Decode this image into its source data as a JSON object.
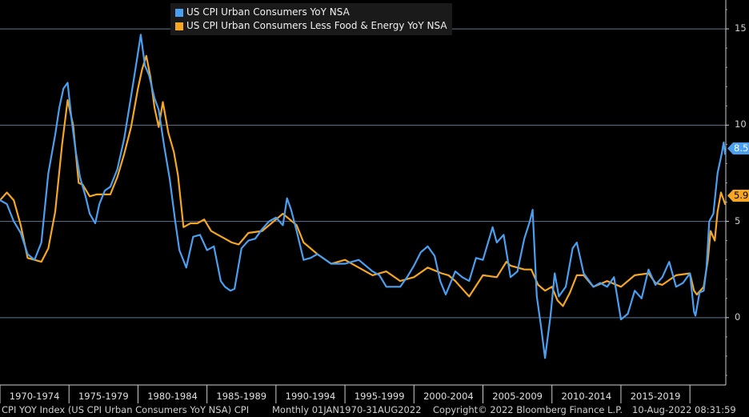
{
  "legend": {
    "series_a": "US CPI Urban Consumers YoY NSA",
    "series_b": "US CPI Urban Consumers Less Food & Energy YoY NSA"
  },
  "colors": {
    "series_a": "#4a9ff0",
    "series_b": "#f5a623",
    "gridline": "#5f7590",
    "background": "#000000"
  },
  "footer": {
    "left": "CPI YOY Index (US CPI Urban Consumers YoY NSA) CPI",
    "period": "Monthly 01JAN1970-31AUG2022",
    "copyright": "Copyright© 2022 Bloomberg Finance L.P.",
    "timestamp": "10-Aug-2022 08:31:59"
  },
  "last_values": {
    "series_a": "8.5",
    "series_b": "5.9"
  },
  "chart_data": {
    "type": "line",
    "title": "",
    "xlabel": "",
    "ylabel": "",
    "xlim": [
      1970.0,
      2022.6
    ],
    "ylim": [
      -3.5,
      16.5
    ],
    "yticks": [
      "15",
      "10",
      "5",
      "0"
    ],
    "ytick_values": [
      15,
      10,
      5,
      0
    ],
    "xtick_labels": [
      "1970-1974",
      "1975-1979",
      "1980-1984",
      "1985-1989",
      "1990-1994",
      "1995-1999",
      "2000-2004",
      "2005-2009",
      "2010-2014",
      "2015-2019"
    ],
    "series": [
      {
        "name": "US CPI Urban Consumers YoY NSA",
        "x": [
          1970.0,
          1970.5,
          1971.0,
          1971.5,
          1972.0,
          1972.5,
          1973.0,
          1973.5,
          1974.0,
          1974.3,
          1974.6,
          1974.9,
          1975.2,
          1975.5,
          1975.8,
          1976.2,
          1976.5,
          1976.9,
          1977.2,
          1977.6,
          1978.0,
          1978.5,
          1979.0,
          1979.5,
          1979.9,
          1980.2,
          1980.5,
          1980.8,
          1981.2,
          1981.5,
          1981.9,
          1982.3,
          1982.7,
          1983.0,
          1983.5,
          1984.0,
          1984.5,
          1985.0,
          1985.5,
          1986.0,
          1986.3,
          1986.7,
          1987.0,
          1987.5,
          1988.0,
          1988.5,
          1989.0,
          1989.5,
          1990.0,
          1990.5,
          1990.8,
          1991.1,
          1991.5,
          1992.0,
          1992.5,
          1993.0,
          1994.0,
          1995.0,
          1996.0,
          1997.0,
          1997.5,
          1998.0,
          1998.5,
          1999.0,
          1999.5,
          2000.0,
          2000.5,
          2001.0,
          2001.5,
          2001.9,
          2002.3,
          2003.0,
          2003.5,
          2004.0,
          2004.5,
          2005.0,
          2005.7,
          2006.0,
          2006.5,
          2007.0,
          2007.5,
          2008.0,
          2008.4,
          2008.6,
          2008.9,
          2009.2,
          2009.5,
          2009.9,
          2010.2,
          2010.5,
          2011.0,
          2011.5,
          2011.8,
          2012.3,
          2013.0,
          2013.5,
          2014.0,
          2014.5,
          2015.0,
          2015.5,
          2016.0,
          2016.5,
          2017.0,
          2017.5,
          2018.0,
          2018.5,
          2019.0,
          2019.5,
          2020.0,
          2020.3,
          2020.4,
          2020.7,
          2021.0,
          2021.2,
          2021.4,
          2021.7,
          2022.0,
          2022.3,
          2022.45,
          2022.55
        ],
        "values": [
          6.1,
          5.9,
          5.0,
          4.4,
          3.3,
          3.0,
          3.9,
          7.5,
          9.5,
          10.9,
          11.9,
          12.2,
          10.2,
          8.6,
          7.3,
          6.3,
          5.4,
          4.9,
          5.9,
          6.6,
          6.8,
          7.7,
          9.3,
          11.5,
          13.3,
          14.7,
          13.1,
          12.6,
          11.4,
          10.8,
          8.9,
          7.2,
          5.0,
          3.5,
          2.6,
          4.2,
          4.3,
          3.5,
          3.7,
          1.9,
          1.6,
          1.4,
          1.5,
          3.6,
          4.0,
          4.1,
          4.6,
          5.0,
          5.2,
          4.8,
          6.2,
          5.6,
          4.5,
          3.0,
          3.1,
          3.3,
          2.8,
          2.8,
          3.0,
          2.4,
          2.2,
          1.6,
          1.6,
          1.6,
          2.1,
          2.7,
          3.4,
          3.7,
          3.2,
          1.9,
          1.2,
          2.4,
          2.1,
          1.9,
          3.1,
          3.0,
          4.7,
          3.9,
          4.3,
          2.1,
          2.4,
          4.1,
          5.0,
          5.6,
          1.1,
          -0.4,
          -2.1,
          0.1,
          2.3,
          1.1,
          1.6,
          3.6,
          3.9,
          2.3,
          1.6,
          1.8,
          1.6,
          2.1,
          -0.1,
          0.2,
          1.4,
          1.0,
          2.5,
          1.7,
          2.1,
          2.9,
          1.6,
          1.8,
          2.3,
          0.3,
          0.1,
          1.3,
          1.4,
          2.6,
          5.0,
          5.4,
          7.5,
          8.5,
          9.1,
          8.5
        ]
      },
      {
        "name": "US CPI Urban Consumers Less Food & Energy YoY NSA",
        "x": [
          1970.0,
          1970.5,
          1971.0,
          1971.5,
          1972.0,
          1972.5,
          1973.0,
          1973.5,
          1974.0,
          1974.5,
          1974.9,
          1975.3,
          1975.7,
          1976.0,
          1976.5,
          1977.0,
          1977.5,
          1978.0,
          1978.5,
          1979.0,
          1979.5,
          1980.0,
          1980.3,
          1980.6,
          1980.9,
          1981.2,
          1981.5,
          1981.8,
          1982.2,
          1982.6,
          1982.9,
          1983.3,
          1983.8,
          1984.3,
          1984.8,
          1985.3,
          1985.8,
          1986.3,
          1986.8,
          1987.3,
          1988.0,
          1989.0,
          1990.0,
          1990.5,
          1991.0,
          1991.5,
          1992.0,
          1993.0,
          1994.0,
          1995.0,
          1996.0,
          1997.0,
          1998.0,
          1999.0,
          2000.0,
          2001.0,
          2002.0,
          2002.5,
          2003.0,
          2003.5,
          2004.0,
          2005.0,
          2006.0,
          2006.7,
          2007.0,
          2008.0,
          2008.5,
          2009.0,
          2009.5,
          2010.0,
          2010.4,
          2010.8,
          2011.3,
          2011.8,
          2012.3,
          2013.0,
          2014.0,
          2015.0,
          2016.0,
          2017.0,
          2017.5,
          2018.0,
          2019.0,
          2020.0,
          2020.3,
          2020.5,
          2021.0,
          2021.3,
          2021.5,
          2021.8,
          2022.0,
          2022.25,
          2022.4,
          2022.55
        ],
        "values": [
          6.1,
          6.5,
          6.1,
          4.8,
          3.1,
          3.0,
          2.9,
          3.6,
          5.5,
          9.0,
          11.3,
          10.0,
          7.0,
          6.9,
          6.3,
          6.4,
          6.4,
          6.4,
          7.3,
          8.5,
          9.9,
          11.9,
          12.9,
          13.6,
          12.5,
          10.9,
          9.9,
          11.2,
          9.6,
          8.6,
          7.4,
          4.7,
          4.9,
          4.9,
          5.1,
          4.5,
          4.3,
          4.1,
          3.9,
          3.8,
          4.4,
          4.5,
          5.1,
          5.4,
          5.1,
          4.8,
          3.9,
          3.3,
          2.8,
          3.0,
          2.6,
          2.2,
          2.4,
          1.9,
          2.1,
          2.6,
          2.3,
          2.2,
          1.9,
          1.5,
          1.1,
          2.2,
          2.1,
          2.9,
          2.7,
          2.5,
          2.5,
          1.7,
          1.4,
          1.6,
          0.9,
          0.6,
          1.3,
          2.2,
          2.2,
          1.6,
          1.9,
          1.6,
          2.2,
          2.3,
          1.8,
          1.7,
          2.2,
          2.3,
          1.4,
          1.2,
          1.6,
          3.0,
          4.5,
          4.0,
          5.5,
          6.5,
          6.2,
          5.9
        ]
      }
    ]
  }
}
